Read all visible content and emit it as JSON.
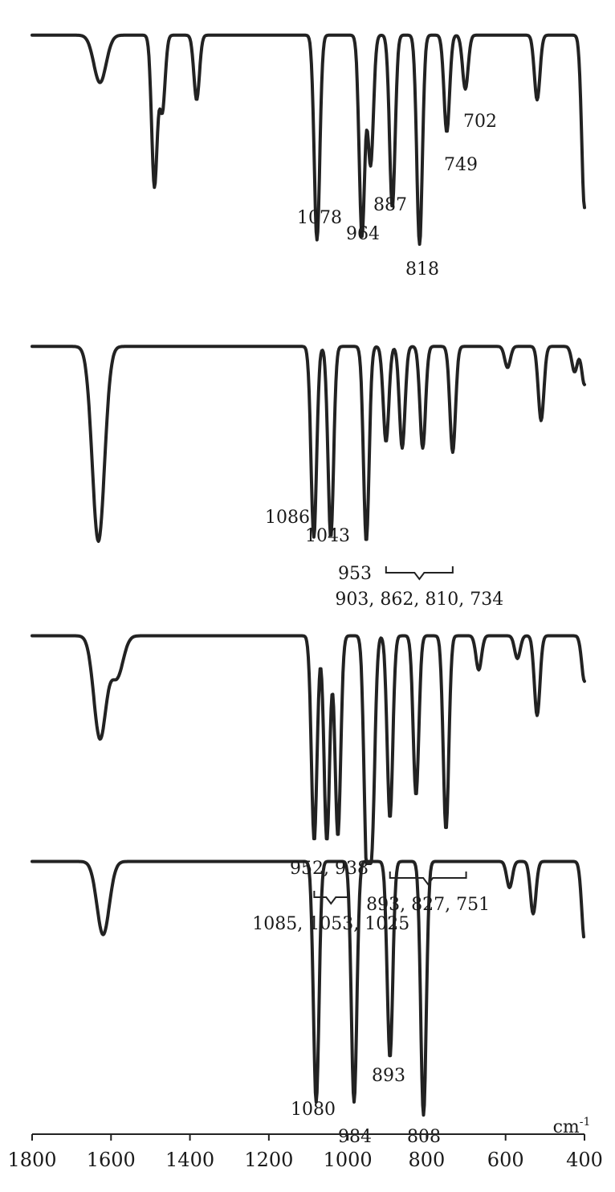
{
  "chart_data": [
    {
      "type": "line",
      "x_unit": "cm-1",
      "baseline": 0.9,
      "peaks": [
        [
          1628,
          0.22
        ],
        [
          1490,
          0.7
        ],
        [
          1470,
          0.35
        ],
        [
          1383,
          0.3
        ],
        [
          1078,
          0.95
        ],
        [
          964,
          0.93
        ],
        [
          942,
          0.6
        ],
        [
          887,
          0.8
        ],
        [
          818,
          0.97
        ],
        [
          749,
          0.45
        ],
        [
          702,
          0.25
        ],
        [
          520,
          0.3
        ],
        [
          400,
          0.8
        ]
      ],
      "annotations": [
        {
          "text": "1078",
          "x": 1078
        },
        {
          "text": "964",
          "x": 964
        },
        {
          "text": "887",
          "x": 887
        },
        {
          "text": "818",
          "x": 818
        },
        {
          "text": "749",
          "x": 749
        },
        {
          "text": "702",
          "x": 702
        }
      ]
    },
    {
      "type": "line",
      "x_unit": "cm-1",
      "baseline": 0.9,
      "peaks": [
        [
          1632,
          0.92
        ],
        [
          1086,
          0.9
        ],
        [
          1043,
          0.9
        ],
        [
          953,
          0.92
        ],
        [
          903,
          0.45
        ],
        [
          862,
          0.48
        ],
        [
          810,
          0.48
        ],
        [
          734,
          0.5
        ],
        [
          595,
          0.1
        ],
        [
          510,
          0.35
        ],
        [
          425,
          0.12
        ],
        [
          400,
          0.18
        ]
      ],
      "annotations": [
        {
          "text": "1086",
          "x": 1086
        },
        {
          "text": "1043",
          "x": 1043
        },
        {
          "text": "953",
          "x": 953
        },
        {
          "text": "903, 862, 810, 734",
          "bracket": [
            903,
            734
          ]
        }
      ]
    },
    {
      "type": "line",
      "x_unit": "cm-1",
      "baseline": 0.9,
      "peaks": [
        [
          1628,
          0.45
        ],
        [
          1585,
          0.18
        ],
        [
          1085,
          0.9
        ],
        [
          1053,
          0.9
        ],
        [
          1025,
          0.88
        ],
        [
          952,
          0.95
        ],
        [
          938,
          0.8
        ],
        [
          893,
          0.8
        ],
        [
          827,
          0.7
        ],
        [
          751,
          0.85
        ],
        [
          668,
          0.15
        ],
        [
          570,
          0.1
        ],
        [
          520,
          0.35
        ],
        [
          400,
          0.2
        ]
      ],
      "annotations": [
        {
          "text": "1085, 1053, 1025",
          "bracket": [
            1085,
            1000
          ]
        },
        {
          "text": "952, 938",
          "x": 945
        },
        {
          "text": "893, 827, 751",
          "bracket": [
            893,
            700
          ]
        }
      ]
    },
    {
      "type": "line",
      "x_unit": "cm-1",
      "baseline": 0.93,
      "peaks": [
        [
          1620,
          0.28
        ],
        [
          1080,
          0.92
        ],
        [
          984,
          0.92
        ],
        [
          893,
          0.75
        ],
        [
          808,
          0.97
        ],
        [
          590,
          0.1
        ],
        [
          530,
          0.2
        ],
        [
          400,
          0.3
        ]
      ],
      "annotations": [
        {
          "text": "1080",
          "x": 1080
        },
        {
          "text": "984",
          "x": 984
        },
        {
          "text": "893",
          "x": 893
        },
        {
          "text": "808",
          "x": 808
        }
      ]
    }
  ],
  "x_axis": {
    "ticks": [
      1800,
      1600,
      1400,
      1200,
      1000,
      800,
      600,
      400
    ],
    "range": [
      1800,
      400
    ],
    "unit_label": "cm-1"
  }
}
